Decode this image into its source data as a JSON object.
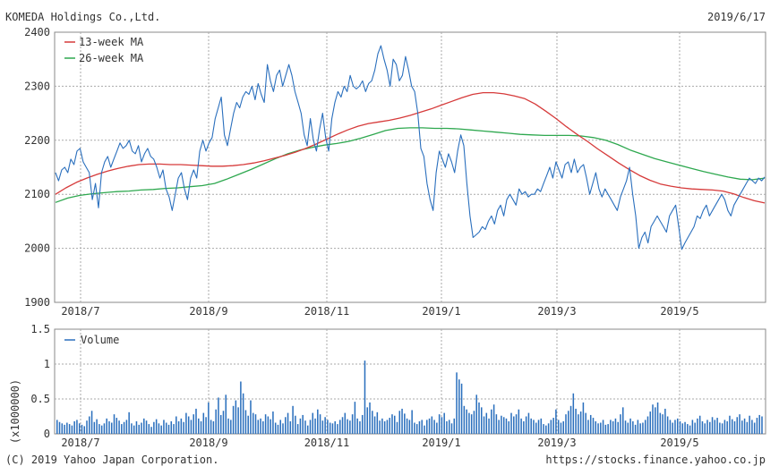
{
  "header": {
    "company": "KOMEDA Holdings Co.,Ltd.",
    "date": "2019/6/17"
  },
  "footer": {
    "copyright": "(C) 2019 Yahoo Japan Corporation.",
    "url": "https://stocks.finance.yahoo.co.jp"
  },
  "colors": {
    "price": "#2a6fbd",
    "ma13": "#d63a3a",
    "ma26": "#2ea84f",
    "volume": "#2a6fbd"
  },
  "chart_data": [
    {
      "type": "line",
      "title": "",
      "ylim": [
        1900,
        2400
      ],
      "yticks": [
        "1900",
        "2000",
        "2100",
        "2200",
        "2300",
        "2400"
      ],
      "xticks": [
        "2018/7",
        "2018/9",
        "2018/11",
        "2019/1",
        "2019/3",
        "2019/5"
      ],
      "grid": true,
      "legend": "top-left",
      "series": [
        {
          "key": "price",
          "values": [
            2140,
            2125,
            2145,
            2150,
            2140,
            2165,
            2155,
            2180,
            2185,
            2160,
            2150,
            2140,
            2090,
            2120,
            2075,
            2140,
            2160,
            2170,
            2150,
            2165,
            2180,
            2195,
            2185,
            2190,
            2200,
            2180,
            2175,
            2190,
            2160,
            2175,
            2185,
            2170,
            2165,
            2150,
            2130,
            2145,
            2110,
            2095,
            2070,
            2100,
            2130,
            2140,
            2110,
            2090,
            2130,
            2145,
            2130,
            2180,
            2200,
            2180,
            2195,
            2205,
            2240,
            2260,
            2280,
            2210,
            2190,
            2220,
            2250,
            2270,
            2260,
            2280,
            2290,
            2285,
            2300,
            2275,
            2305,
            2285,
            2270,
            2340,
            2310,
            2290,
            2320,
            2330,
            2300,
            2320,
            2340,
            2320,
            2290,
            2270,
            2250,
            2210,
            2190,
            2240,
            2200,
            2180,
            2220,
            2250,
            2205,
            2180,
            2240,
            2270,
            2290,
            2280,
            2300,
            2290,
            2320,
            2300,
            2295,
            2300,
            2310,
            2290,
            2305,
            2310,
            2330,
            2360,
            2375,
            2350,
            2330,
            2300,
            2350,
            2340,
            2310,
            2320,
            2355,
            2330,
            2300,
            2290,
            2250,
            2185,
            2170,
            2120,
            2090,
            2070,
            2140,
            2180,
            2165,
            2150,
            2175,
            2160,
            2140,
            2180,
            2210,
            2190,
            2120,
            2060,
            2020,
            2025,
            2030,
            2040,
            2035,
            2050,
            2060,
            2045,
            2070,
            2080,
            2060,
            2090,
            2100,
            2090,
            2080,
            2110,
            2100,
            2105,
            2095,
            2100,
            2100,
            2110,
            2105,
            2120,
            2135,
            2150,
            2130,
            2160,
            2145,
            2130,
            2155,
            2160,
            2140,
            2165,
            2140,
            2150,
            2155,
            2130,
            2100,
            2120,
            2140,
            2110,
            2095,
            2110,
            2100,
            2090,
            2080,
            2070,
            2095,
            2110,
            2125,
            2150,
            2100,
            2060,
            2000,
            2020,
            2030,
            2010,
            2040,
            2050,
            2060,
            2050,
            2040,
            2030,
            2060,
            2070,
            2080,
            2040,
            1998,
            2010,
            2020,
            2030,
            2040,
            2060,
            2055,
            2070,
            2080,
            2060,
            2070,
            2080,
            2090,
            2100,
            2090,
            2070,
            2060,
            2080,
            2090,
            2100,
            2110,
            2120,
            2130,
            2125,
            2120,
            2130,
            2125,
            2132
          ]
        },
        {
          "key": "ma13",
          "name": "13-week MA",
          "values": [
            2100,
            2112,
            2122,
            2130,
            2137,
            2143,
            2148,
            2152,
            2155,
            2156,
            2156,
            2155,
            2155,
            2154,
            2153,
            2152,
            2152,
            2153,
            2155,
            2158,
            2162,
            2167,
            2172,
            2178,
            2185,
            2193,
            2202,
            2211,
            2219,
            2226,
            2231,
            2234,
            2237,
            2241,
            2246,
            2252,
            2258,
            2265,
            2272,
            2279,
            2285,
            2288,
            2288,
            2286,
            2282,
            2277,
            2267,
            2254,
            2240,
            2225,
            2211,
            2198,
            2184,
            2171,
            2158,
            2146,
            2135,
            2126,
            2119,
            2115,
            2112,
            2110,
            2109,
            2108,
            2106,
            2101,
            2094,
            2088,
            2084
          ]
        },
        {
          "key": "ma26",
          "name": "26-week MA",
          "values": [
            2085,
            2093,
            2098,
            2101,
            2103,
            2105,
            2106,
            2108,
            2109,
            2111,
            2112,
            2114,
            2116,
            2120,
            2128,
            2137,
            2146,
            2156,
            2166,
            2175,
            2182,
            2187,
            2191,
            2194,
            2198,
            2204,
            2211,
            2218,
            2222,
            2223,
            2223,
            2222,
            2222,
            2221,
            2219,
            2217,
            2215,
            2213,
            2211,
            2210,
            2209,
            2209,
            2209,
            2208,
            2205,
            2200,
            2192,
            2182,
            2174,
            2166,
            2160,
            2154,
            2148,
            2142,
            2137,
            2132,
            2128,
            2127,
            2130
          ]
        }
      ]
    },
    {
      "type": "bar",
      "title": "",
      "ylabel": "(x1000000)",
      "ylim": [
        0,
        1.5
      ],
      "yticks": [
        "0",
        "0.5",
        "1",
        "1.5"
      ],
      "xticks": [
        "2018/7",
        "2018/9",
        "2018/11",
        "2019/1",
        "2019/3",
        "2019/5"
      ],
      "grid": true,
      "legend": "top-left",
      "series": [
        {
          "key": "volume",
          "name": "Volume",
          "values": [
            0.2,
            0.17,
            0.15,
            0.13,
            0.16,
            0.14,
            0.12,
            0.18,
            0.2,
            0.15,
            0.13,
            0.11,
            0.19,
            0.25,
            0.33,
            0.17,
            0.21,
            0.14,
            0.12,
            0.15,
            0.22,
            0.18,
            0.16,
            0.28,
            0.23,
            0.19,
            0.14,
            0.17,
            0.2,
            0.31,
            0.15,
            0.12,
            0.18,
            0.13,
            0.16,
            0.22,
            0.19,
            0.14,
            0.1,
            0.17,
            0.21,
            0.15,
            0.12,
            0.2,
            0.16,
            0.13,
            0.18,
            0.14,
            0.25,
            0.18,
            0.22,
            0.17,
            0.3,
            0.25,
            0.2,
            0.28,
            0.36,
            0.22,
            0.18,
            0.3,
            0.24,
            0.45,
            0.2,
            0.18,
            0.35,
            0.52,
            0.27,
            0.33,
            0.56,
            0.22,
            0.2,
            0.4,
            0.48,
            0.38,
            0.75,
            0.58,
            0.34,
            0.26,
            0.48,
            0.3,
            0.28,
            0.2,
            0.22,
            0.18,
            0.28,
            0.25,
            0.21,
            0.32,
            0.16,
            0.13,
            0.2,
            0.15,
            0.24,
            0.3,
            0.18,
            0.4,
            0.26,
            0.14,
            0.22,
            0.27,
            0.19,
            0.12,
            0.2,
            0.3,
            0.22,
            0.35,
            0.28,
            0.19,
            0.24,
            0.2,
            0.16,
            0.15,
            0.18,
            0.14,
            0.2,
            0.24,
            0.3,
            0.21,
            0.19,
            0.28,
            0.46,
            0.22,
            0.18,
            0.27,
            1.05,
            0.38,
            0.45,
            0.33,
            0.25,
            0.31,
            0.19,
            0.22,
            0.18,
            0.2,
            0.23,
            0.28,
            0.26,
            0.17,
            0.33,
            0.36,
            0.29,
            0.22,
            0.2,
            0.34,
            0.16,
            0.14,
            0.18,
            0.2,
            0.12,
            0.2,
            0.22,
            0.25,
            0.2,
            0.16,
            0.28,
            0.24,
            0.3,
            0.18,
            0.2,
            0.15,
            0.22,
            0.88,
            0.78,
            0.72,
            0.4,
            0.35,
            0.3,
            0.28,
            0.33,
            0.56,
            0.45,
            0.38,
            0.25,
            0.3,
            0.22,
            0.35,
            0.42,
            0.28,
            0.2,
            0.26,
            0.24,
            0.22,
            0.18,
            0.3,
            0.25,
            0.28,
            0.35,
            0.22,
            0.18,
            0.25,
            0.3,
            0.22,
            0.2,
            0.16,
            0.2,
            0.22,
            0.14,
            0.12,
            0.15,
            0.2,
            0.23,
            0.35,
            0.2,
            0.16,
            0.18,
            0.28,
            0.33,
            0.4,
            0.58,
            0.36,
            0.28,
            0.32,
            0.45,
            0.3,
            0.2,
            0.27,
            0.23,
            0.18,
            0.15,
            0.16,
            0.2,
            0.13,
            0.14,
            0.2,
            0.18,
            0.22,
            0.17,
            0.28,
            0.38,
            0.19,
            0.16,
            0.22,
            0.18,
            0.13,
            0.2,
            0.15,
            0.16,
            0.2,
            0.25,
            0.32,
            0.42,
            0.38,
            0.45,
            0.3,
            0.28,
            0.36,
            0.25,
            0.2,
            0.16,
            0.2,
            0.22,
            0.18,
            0.15,
            0.17,
            0.14,
            0.12,
            0.2,
            0.16,
            0.22,
            0.26,
            0.18,
            0.15,
            0.2,
            0.17,
            0.24,
            0.2,
            0.23,
            0.16,
            0.15,
            0.2,
            0.18,
            0.26,
            0.21,
            0.18,
            0.24,
            0.28,
            0.19,
            0.22,
            0.17,
            0.26,
            0.2,
            0.16,
            0.23,
            0.27,
            0.25
          ]
        }
      ]
    }
  ]
}
